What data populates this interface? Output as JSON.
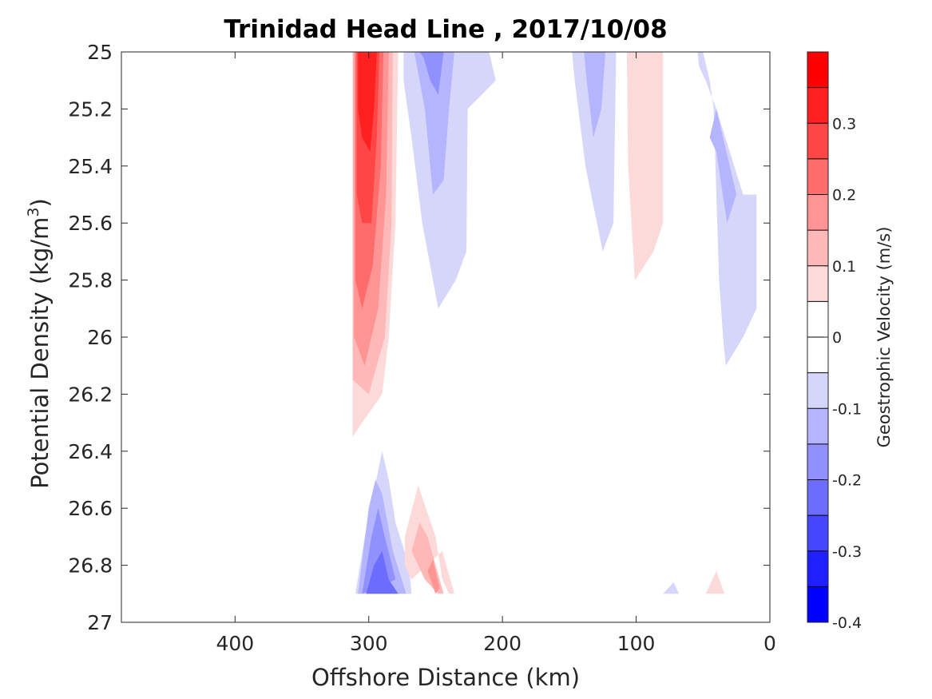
{
  "chart_data": {
    "type": "contour",
    "title": "Trinidad Head Line , 2017/10/08",
    "xlabel": "Offshore Distance (km)",
    "ylabel_main": "Potential Density (kg/m",
    "ylabel_sup": "3",
    "ylabel_end": ")",
    "xlim": [
      485,
      0
    ],
    "ylim": [
      25,
      27
    ],
    "x_ticks": [
      400,
      300,
      200,
      100,
      0
    ],
    "x_tick_labels": [
      "400",
      "300",
      "200",
      "100",
      "0"
    ],
    "y_ticks": [
      25,
      25.2,
      25.4,
      25.6,
      25.8,
      26,
      26.2,
      26.4,
      26.6,
      26.8,
      27
    ],
    "y_tick_labels": [
      "25",
      "25.2",
      "25.4",
      "25.6",
      "25.8",
      "26",
      "26.2",
      "26.4",
      "26.6",
      "26.8",
      "27"
    ],
    "grid": false,
    "colorbar": {
      "label": "Geostrophic Velocity (m/s)",
      "range": [
        -0.4,
        0.4
      ],
      "levels": [
        -0.4,
        -0.35,
        -0.3,
        -0.25,
        -0.2,
        -0.15,
        -0.1,
        -0.05,
        0,
        0.05,
        0.1,
        0.15,
        0.2,
        0.25,
        0.3,
        0.35,
        0.4
      ],
      "tick_values": [
        0.3,
        0.2,
        0.1,
        0,
        -0.1,
        -0.2,
        -0.3,
        -0.4
      ],
      "tick_labels": [
        "0.3",
        "0.2",
        "0.1",
        "0",
        "-0.1",
        "-0.2",
        "-0.3",
        "-0.4"
      ],
      "colors": [
        "#0000ff",
        "#2020ff",
        "#4646ff",
        "#6c6cff",
        "#9090ff",
        "#b4b4ff",
        "#d6d6fb",
        "#ffffff",
        "#ffffff",
        "#fcdada",
        "#ffb8b8",
        "#ff9494",
        "#ff6c6c",
        "#ff4646",
        "#ff2020",
        "#ff0000"
      ]
    },
    "contour_fields": [
      {
        "name": "core-300km-positive",
        "level": 0.05,
        "color": "#fcdada",
        "points": [
          [
            312,
            25
          ],
          [
            278,
            25
          ],
          [
            280,
            25.6
          ],
          [
            285,
            26
          ],
          [
            290,
            26.2
          ],
          [
            305,
            26.3
          ],
          [
            312,
            26.35
          ]
        ]
      },
      {
        "name": "core-300km-positive",
        "level": 0.1,
        "color": "#ffb8b8",
        "points": [
          [
            312,
            25
          ],
          [
            282,
            25
          ],
          [
            283,
            25.6
          ],
          [
            288,
            26
          ],
          [
            300,
            26.2
          ],
          [
            312,
            26.15
          ]
        ]
      },
      {
        "name": "core-300km-positive",
        "level": 0.15,
        "color": "#ff9494",
        "points": [
          [
            311,
            25
          ],
          [
            285,
            25
          ],
          [
            287,
            25.5
          ],
          [
            293,
            25.9
          ],
          [
            303,
            26.1
          ],
          [
            311,
            26.0
          ]
        ]
      },
      {
        "name": "core-300km-positive",
        "level": 0.2,
        "color": "#ff6c6c",
        "points": [
          [
            310,
            25
          ],
          [
            289,
            25
          ],
          [
            291,
            25.4
          ],
          [
            297,
            25.75
          ],
          [
            305,
            25.9
          ],
          [
            310,
            25.8
          ]
        ]
      },
      {
        "name": "core-300km-positive",
        "level": 0.25,
        "color": "#ff4646",
        "points": [
          [
            309,
            25
          ],
          [
            292,
            25
          ],
          [
            294,
            25.3
          ],
          [
            298,
            25.6
          ],
          [
            305,
            25.6
          ],
          [
            309,
            25.5
          ]
        ]
      },
      {
        "name": "core-300km-positive",
        "level": 0.3,
        "color": "#ff2020",
        "points": [
          [
            308,
            25
          ],
          [
            294,
            25
          ],
          [
            296,
            25.2
          ],
          [
            299,
            25.35
          ],
          [
            305,
            25.3
          ],
          [
            308,
            25.2
          ]
        ]
      },
      {
        "name": "negative-250km",
        "level": -0.05,
        "color": "#d6d6fb",
        "points": [
          [
            274,
            25
          ],
          [
            210,
            25
          ],
          [
            205,
            25.1
          ],
          [
            226,
            25.2
          ],
          [
            227,
            25.7
          ],
          [
            235,
            25.8
          ],
          [
            248,
            25.9
          ],
          [
            260,
            25.6
          ],
          [
            268,
            25.3
          ],
          [
            274,
            25.1
          ]
        ]
      },
      {
        "name": "negative-250km",
        "level": -0.1,
        "color": "#b4b4ff",
        "points": [
          [
            266,
            25
          ],
          [
            236,
            25
          ],
          [
            240,
            25.2
          ],
          [
            244,
            25.45
          ],
          [
            252,
            25.5
          ],
          [
            258,
            25.2
          ],
          [
            264,
            25.05
          ]
        ]
      },
      {
        "name": "negative-250km",
        "level": -0.15,
        "color": "#9090ff",
        "points": [
          [
            262,
            25
          ],
          [
            244,
            25
          ],
          [
            248,
            25.15
          ],
          [
            254,
            25.1
          ],
          [
            259,
            25.02
          ]
        ]
      },
      {
        "name": "negative-130km",
        "level": -0.05,
        "color": "#d6d6fb",
        "points": [
          [
            148,
            25
          ],
          [
            115,
            25
          ],
          [
            117,
            25.6
          ],
          [
            125,
            25.7
          ],
          [
            138,
            25.4
          ],
          [
            146,
            25.1
          ]
        ]
      },
      {
        "name": "negative-130km",
        "level": -0.1,
        "color": "#b4b4ff",
        "points": [
          [
            139,
            25
          ],
          [
            123,
            25
          ],
          [
            126,
            25.2
          ],
          [
            132,
            25.3
          ],
          [
            137,
            25.1
          ]
        ]
      },
      {
        "name": "positive-100km",
        "level": 0.05,
        "color": "#fcdada",
        "points": [
          [
            107,
            25
          ],
          [
            80,
            25
          ],
          [
            80,
            25.6
          ],
          [
            87,
            25.7
          ],
          [
            101,
            25.8
          ],
          [
            106,
            25.4
          ]
        ]
      },
      {
        "name": "negative-nearshore",
        "level": -0.05,
        "color": "#d6d6fb",
        "points": [
          [
            54,
            25
          ],
          [
            50,
            25
          ],
          [
            45,
            25.1
          ],
          [
            42,
            25.2
          ],
          [
            40,
            25.5
          ],
          [
            38,
            25.8
          ],
          [
            35,
            26
          ],
          [
            33,
            26.1
          ],
          [
            20,
            26
          ],
          [
            10,
            25.9
          ],
          [
            10,
            25.5
          ],
          [
            20,
            25.5
          ],
          [
            40,
            25.2
          ],
          [
            48,
            25.1
          ],
          [
            53,
            25.05
          ]
        ]
      },
      {
        "name": "negative-nearshore",
        "level": -0.1,
        "color": "#b4b4ff",
        "points": [
          [
            45,
            25.3
          ],
          [
            40,
            25.35
          ],
          [
            32,
            25.6
          ],
          [
            25,
            25.5
          ],
          [
            40,
            25.2
          ]
        ]
      },
      {
        "name": "deep-negative-300km",
        "level": -0.05,
        "color": "#d6d6fb",
        "points": [
          [
            310,
            26.9
          ],
          [
            303,
            26.7
          ],
          [
            290,
            26.4
          ],
          [
            285,
            26.5
          ],
          [
            280,
            26.65
          ],
          [
            270,
            26.8
          ],
          [
            268,
            26.9
          ]
        ]
      },
      {
        "name": "deep-negative-300km",
        "level": -0.1,
        "color": "#b4b4ff",
        "points": [
          [
            308,
            26.9
          ],
          [
            300,
            26.6
          ],
          [
            295,
            26.5
          ],
          [
            290,
            26.55
          ],
          [
            282,
            26.75
          ],
          [
            272,
            26.9
          ]
        ]
      },
      {
        "name": "deep-negative-300km",
        "level": -0.15,
        "color": "#9090ff",
        "points": [
          [
            305,
            26.9
          ],
          [
            298,
            26.7
          ],
          [
            293,
            26.6
          ],
          [
            288,
            26.7
          ],
          [
            280,
            26.85
          ]
        ]
      },
      {
        "name": "deep-negative-300km",
        "level": -0.2,
        "color": "#6c6cff",
        "points": [
          [
            302,
            26.9
          ],
          [
            296,
            26.8
          ],
          [
            290,
            26.75
          ],
          [
            285,
            26.85
          ],
          [
            278,
            26.9
          ]
        ]
      },
      {
        "name": "deep-positive-260km",
        "level": 0.05,
        "color": "#fcdada",
        "points": [
          [
            273,
            26.7
          ],
          [
            263,
            26.52
          ],
          [
            250,
            26.7
          ],
          [
            245,
            26.85
          ],
          [
            240,
            26.9
          ],
          [
            236,
            26.9
          ],
          [
            245,
            26.75
          ],
          [
            268,
            26.85
          ],
          [
            273,
            26.8
          ]
        ]
      },
      {
        "name": "deep-positive-260km",
        "level": 0.1,
        "color": "#ffb8b8",
        "points": [
          [
            268,
            26.75
          ],
          [
            262,
            26.65
          ],
          [
            256,
            26.7
          ],
          [
            250,
            26.8
          ],
          [
            244,
            26.9
          ],
          [
            248,
            26.9
          ],
          [
            258,
            26.85
          ]
        ]
      },
      {
        "name": "deep-positive-260km",
        "level": 0.15,
        "color": "#ff9494",
        "points": [
          [
            256,
            26.82
          ],
          [
            252,
            26.78
          ],
          [
            247,
            26.88
          ],
          [
            250,
            26.9
          ]
        ]
      },
      {
        "name": "deep-negative-70km",
        "level": -0.05,
        "color": "#d6d6fb",
        "points": [
          [
            80,
            26.9
          ],
          [
            72,
            26.86
          ],
          [
            68,
            26.9
          ]
        ]
      },
      {
        "name": "deep-positive-40km",
        "level": 0.05,
        "color": "#fcdada",
        "points": [
          [
            48,
            26.9
          ],
          [
            40,
            26.82
          ],
          [
            34,
            26.9
          ]
        ]
      }
    ]
  }
}
